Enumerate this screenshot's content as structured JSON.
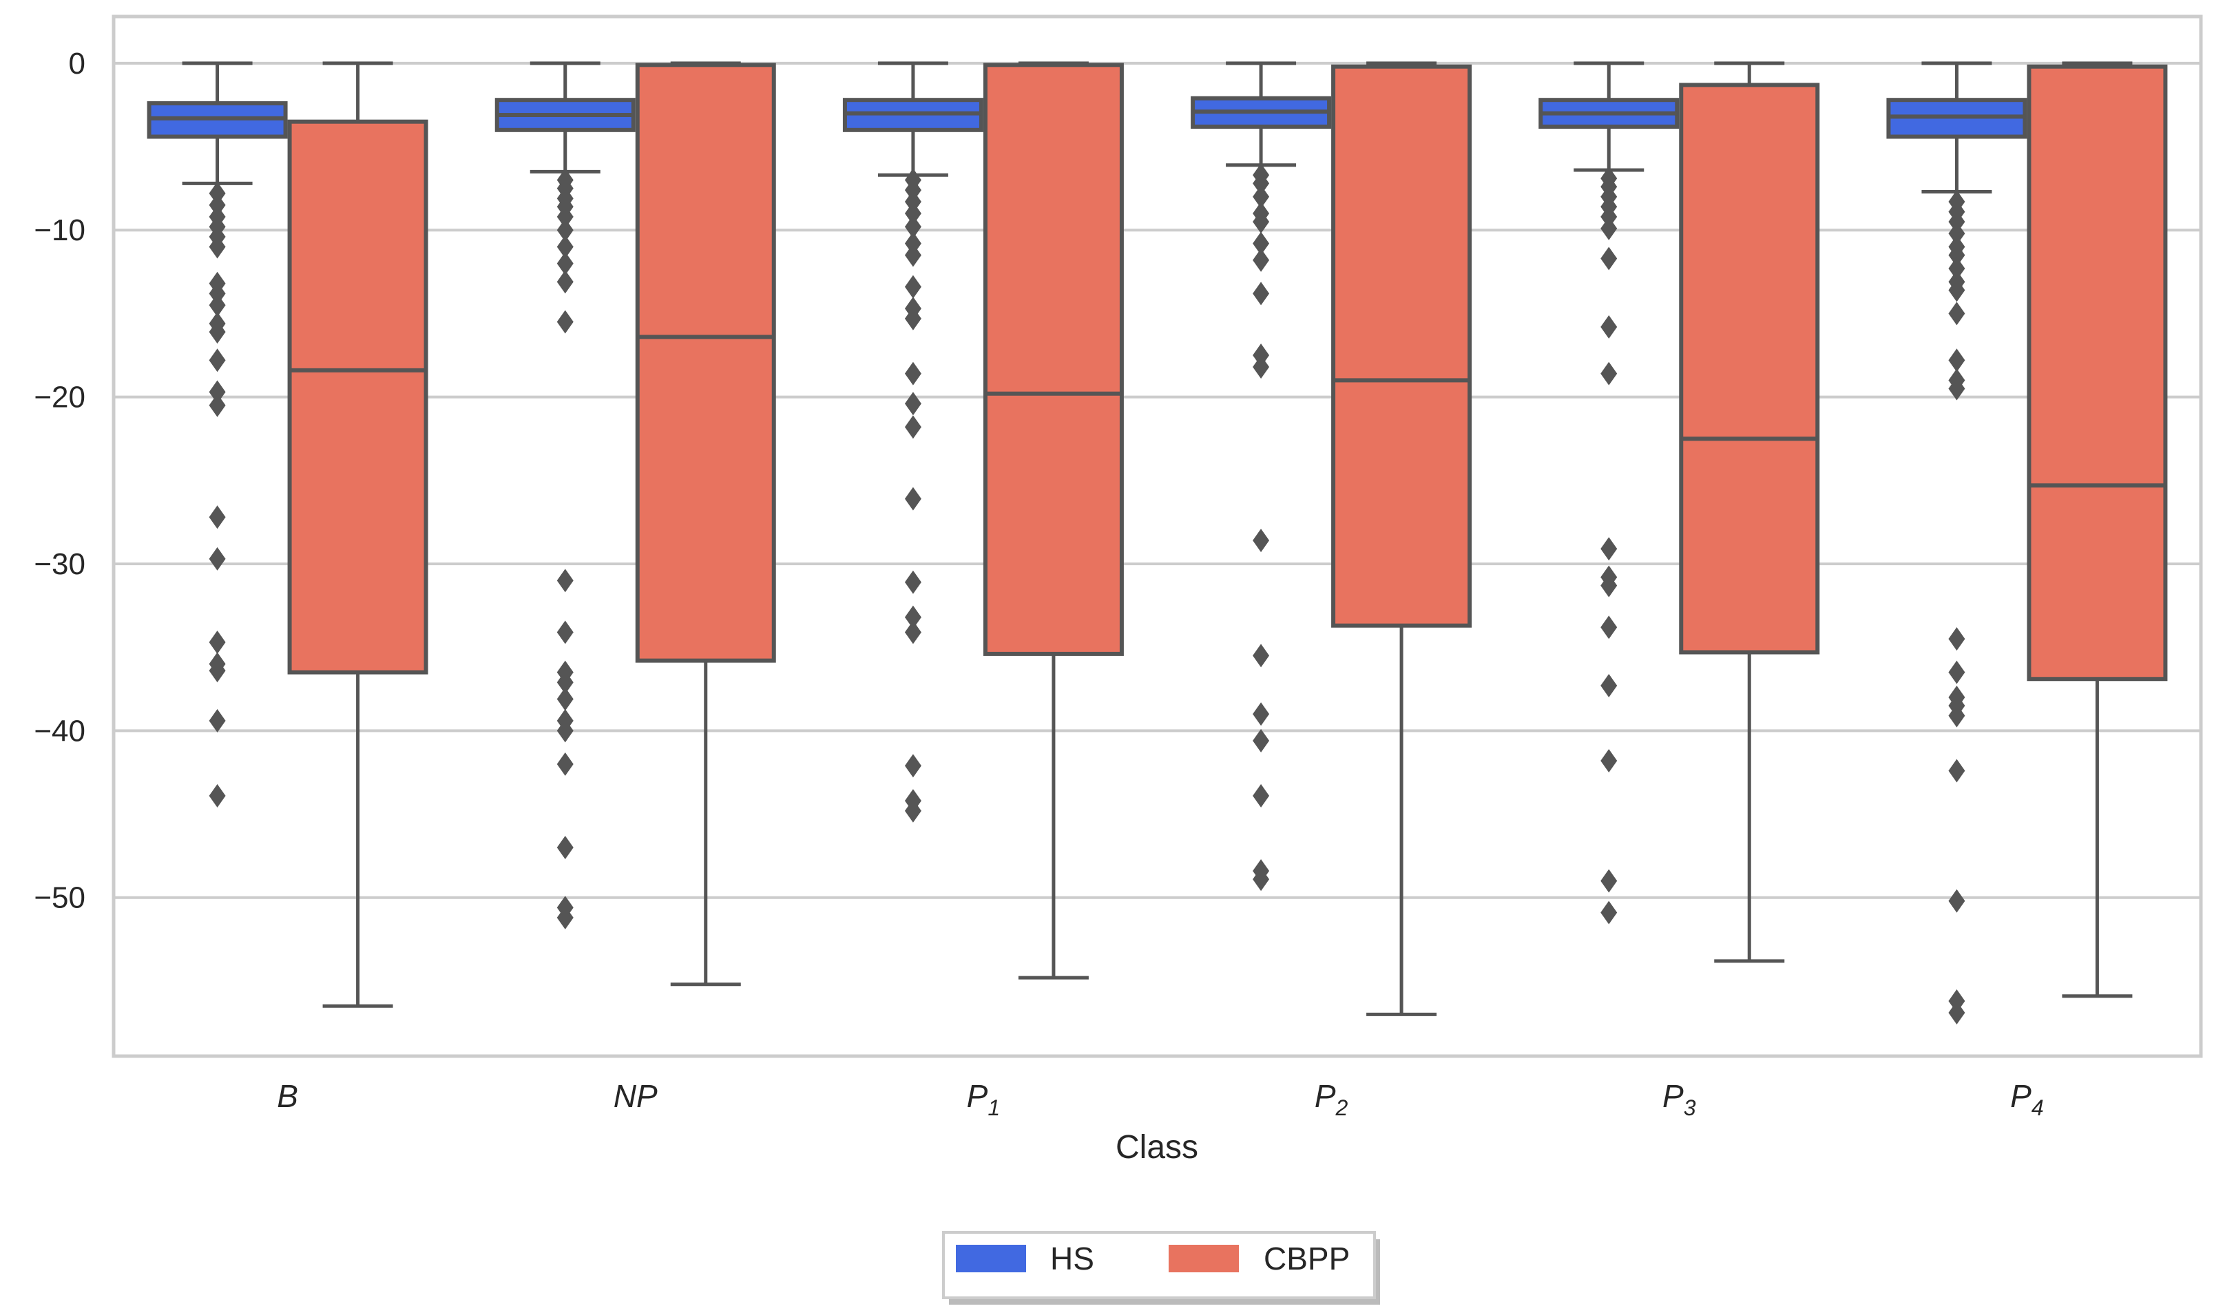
{
  "chart_data": {
    "type": "box",
    "title": "",
    "xlabel": "Class",
    "ylabel": "",
    "ylim": [
      -59.5,
      2.8
    ],
    "yticks": [
      0,
      -10,
      -20,
      -30,
      -40,
      -50
    ],
    "grid": true,
    "legend": {
      "placement": "bottom-center",
      "entries": [
        "HS",
        "CBPP"
      ]
    },
    "colors": {
      "HS": "#4169e1",
      "CBPP": "#e8735f",
      "line": "#555555",
      "grid": "#cccccc",
      "frame": "#cccccc"
    },
    "categories": [
      {
        "base": "B",
        "sub": ""
      },
      {
        "base": "NP",
        "sub": ""
      },
      {
        "base": "P",
        "sub": "1"
      },
      {
        "base": "P",
        "sub": "2"
      },
      {
        "base": "P",
        "sub": "3"
      },
      {
        "base": "P",
        "sub": "4"
      }
    ],
    "series": [
      {
        "name": "HS",
        "boxes": [
          {
            "whislo": -7.2,
            "q1": -4.4,
            "med": -3.3,
            "q3": -2.4,
            "whishi": 0,
            "fliers": [
              -7.8,
              -8.5,
              -9.2,
              -9.8,
              -10.4,
              -11.0,
              -13.2,
              -13.8,
              -14.5,
              -15.6,
              -16.1,
              -17.8,
              -19.7,
              -20.5,
              -27.2,
              -29.7,
              -34.7,
              -36.0,
              -36.4,
              -39.4,
              -43.9
            ]
          },
          {
            "whislo": -6.5,
            "q1": -4.0,
            "med": -3.1,
            "q3": -2.2,
            "whishi": 0,
            "fliers": [
              -7.0,
              -7.5,
              -8.1,
              -8.6,
              -9.2,
              -10.0,
              -11.0,
              -12.0,
              -13.1,
              -15.5,
              -31.0,
              -34.1,
              -36.5,
              -37.1,
              -38.1,
              -39.4,
              -40.0,
              -42.0,
              -47.0,
              -50.6,
              -51.2
            ]
          },
          {
            "whislo": -6.7,
            "q1": -4.0,
            "med": -3.0,
            "q3": -2.2,
            "whishi": 0,
            "fliers": [
              -7.0,
              -7.6,
              -8.3,
              -9.0,
              -9.8,
              -10.8,
              -11.5,
              -13.4,
              -14.7,
              -15.3,
              -18.6,
              -20.4,
              -21.8,
              -26.1,
              -31.1,
              -33.2,
              -34.1,
              -42.1,
              -44.2,
              -44.8
            ]
          },
          {
            "whislo": -6.1,
            "q1": -3.8,
            "med": -2.9,
            "q3": -2.1,
            "whishi": 0,
            "fliers": [
              -6.7,
              -7.2,
              -8.0,
              -9.0,
              -9.5,
              -10.8,
              -11.8,
              -13.8,
              -17.5,
              -18.2,
              -28.6,
              -35.5,
              -39.0,
              -40.6,
              -43.9,
              -48.4,
              -48.9
            ]
          },
          {
            "whislo": -6.4,
            "q1": -3.8,
            "med": -3.0,
            "q3": -2.2,
            "whishi": 0,
            "fliers": [
              -6.9,
              -7.4,
              -8.0,
              -8.6,
              -9.2,
              -9.9,
              -11.7,
              -15.8,
              -18.6,
              -29.1,
              -30.8,
              -31.3,
              -33.8,
              -37.3,
              -41.8,
              -49.0,
              -50.9
            ]
          },
          {
            "whislo": -7.7,
            "q1": -4.4,
            "med": -3.2,
            "q3": -2.2,
            "whishi": 0,
            "fliers": [
              -8.3,
              -8.9,
              -9.5,
              -10.2,
              -11.0,
              -11.5,
              -12.3,
              -13.1,
              -13.6,
              -15.0,
              -17.8,
              -19.0,
              -19.5,
              -34.5,
              -36.5,
              -38.0,
              -38.5,
              -39.1,
              -42.4,
              -50.2,
              -56.2,
              -56.9
            ]
          }
        ]
      },
      {
        "name": "CBPP",
        "boxes": [
          {
            "whislo": -56.5,
            "q1": -36.5,
            "med": -18.4,
            "q3": -3.5,
            "whishi": 0,
            "fliers": []
          },
          {
            "whislo": -55.2,
            "q1": -35.8,
            "med": -16.4,
            "q3": -0.1,
            "whishi": 0,
            "fliers": []
          },
          {
            "whislo": -54.8,
            "q1": -35.4,
            "med": -19.8,
            "q3": -0.1,
            "whishi": 0,
            "fliers": []
          },
          {
            "whislo": -57.0,
            "q1": -33.7,
            "med": -19.0,
            "q3": -0.2,
            "whishi": 0,
            "fliers": []
          },
          {
            "whislo": -53.8,
            "q1": -35.3,
            "med": -22.5,
            "q3": -1.3,
            "whishi": 0,
            "fliers": []
          },
          {
            "whislo": -55.9,
            "q1": -36.9,
            "med": -25.3,
            "q3": -0.2,
            "whishi": 0,
            "fliers": []
          }
        ]
      }
    ]
  }
}
